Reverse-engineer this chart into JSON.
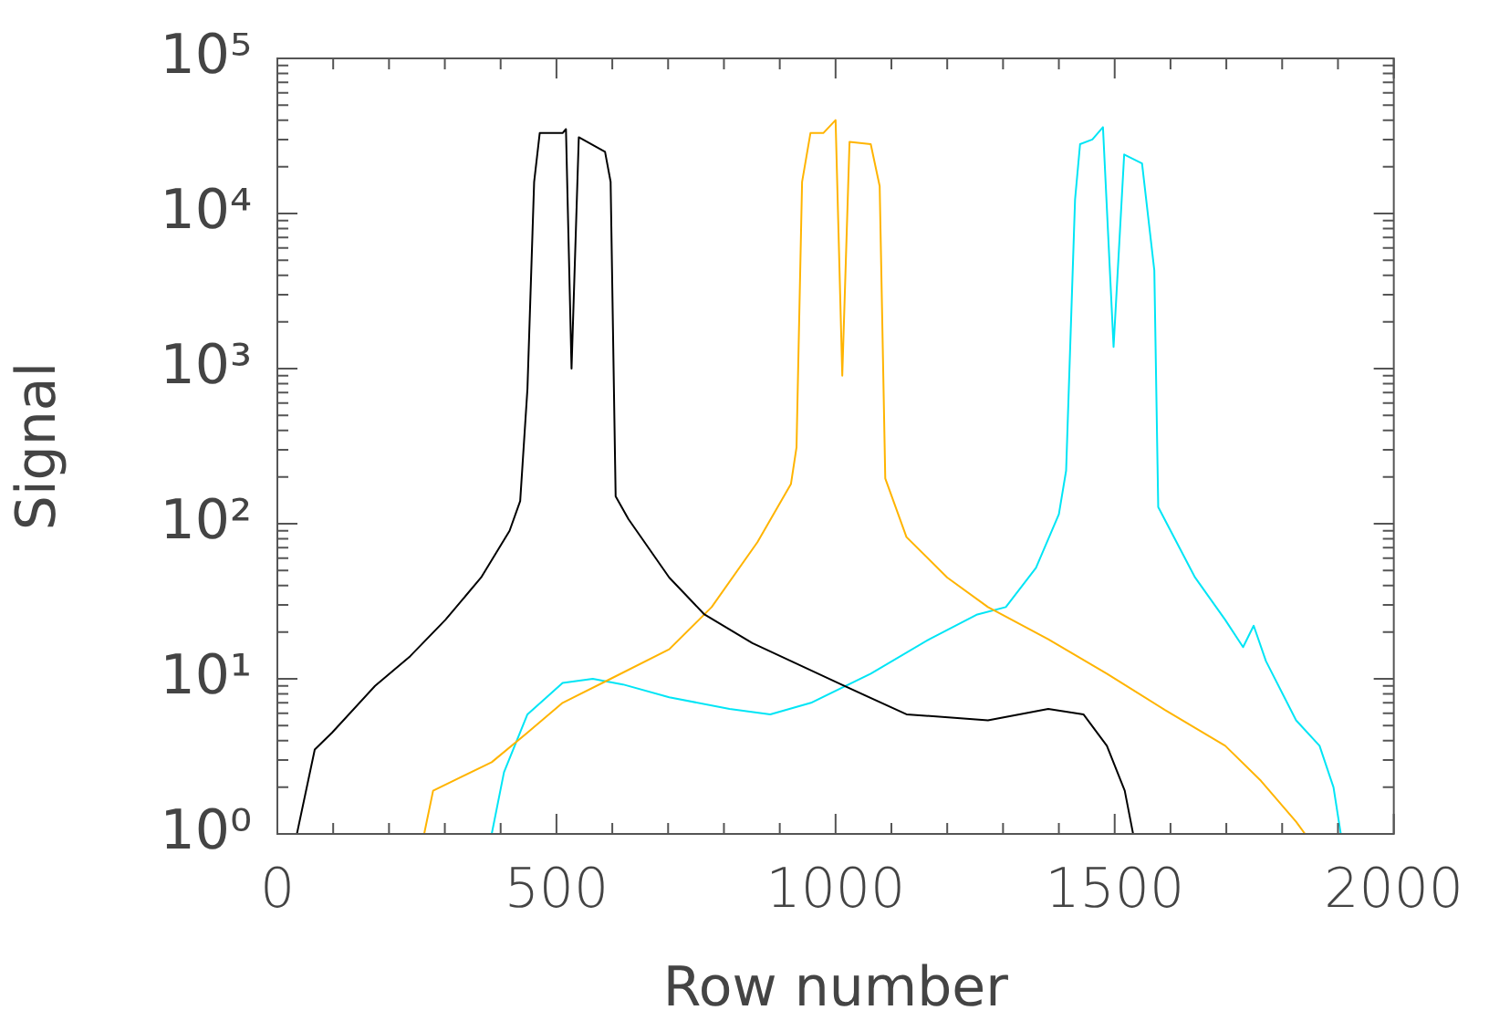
{
  "chart_data": {
    "type": "line",
    "xlabel": "Row number",
    "ylabel": "Signal",
    "log": "y",
    "grid": false,
    "legend": false,
    "marker": "none",
    "line_style": "solid",
    "xlim": [
      0,
      2000
    ],
    "xticks": [
      0,
      {
        "value": 100,
        "label": null
      },
      {
        "value": 200,
        "label": null
      },
      {
        "value": 300,
        "label": null
      },
      {
        "value": 400,
        "label": null
      },
      500,
      {
        "value": 600,
        "label": null
      },
      {
        "value": 700,
        "label": null
      },
      {
        "value": 800,
        "label": null
      },
      {
        "value": 900,
        "label": null
      },
      1000,
      {
        "value": 1100,
        "label": null
      },
      {
        "value": 1200,
        "label": null
      },
      {
        "value": 1300,
        "label": null
      },
      {
        "value": 1400,
        "label": null
      },
      1500,
      {
        "value": 1600,
        "label": null
      },
      {
        "value": 1700,
        "label": null
      },
      {
        "value": 1800,
        "label": null
      },
      {
        "value": 1900,
        "label": null
      },
      2000
    ],
    "ylim": [
      1,
      100000
    ],
    "yticks": [
      {
        "value": 1,
        "label": "10⁰"
      },
      {
        "value": 2,
        "label": null
      },
      {
        "value": 3,
        "label": null
      },
      {
        "value": 4,
        "label": null
      },
      {
        "value": 5,
        "label": null
      },
      {
        "value": 6,
        "label": null
      },
      {
        "value": 7,
        "label": null
      },
      {
        "value": 8,
        "label": null
      },
      {
        "value": 9,
        "label": null
      },
      {
        "value": 10,
        "label": "10¹"
      },
      {
        "value": 20,
        "label": null
      },
      {
        "value": 30,
        "label": null
      },
      {
        "value": 40,
        "label": null
      },
      {
        "value": 50,
        "label": null
      },
      {
        "value": 60,
        "label": null
      },
      {
        "value": 70,
        "label": null
      },
      {
        "value": 80,
        "label": null
      },
      {
        "value": 90,
        "label": null
      },
      {
        "value": 100,
        "label": "10²"
      },
      {
        "value": 200,
        "label": null
      },
      {
        "value": 300,
        "label": null
      },
      {
        "value": 400,
        "label": null
      },
      {
        "value": 500,
        "label": null
      },
      {
        "value": 600,
        "label": null
      },
      {
        "value": 700,
        "label": null
      },
      {
        "value": 800,
        "label": null
      },
      {
        "value": 900,
        "label": null
      },
      {
        "value": 1000,
        "label": "10³"
      },
      {
        "value": 2000,
        "label": null
      },
      {
        "value": 3000,
        "label": null
      },
      {
        "value": 4000,
        "label": null
      },
      {
        "value": 5000,
        "label": null
      },
      {
        "value": 6000,
        "label": null
      },
      {
        "value": 7000,
        "label": null
      },
      {
        "value": 8000,
        "label": null
      },
      {
        "value": 9000,
        "label": null
      },
      {
        "value": 10000,
        "label": "10⁴"
      },
      {
        "value": 20000,
        "label": null
      },
      {
        "value": 30000,
        "label": null
      },
      {
        "value": 40000,
        "label": null
      },
      {
        "value": 50000,
        "label": null
      },
      {
        "value": 60000,
        "label": null
      },
      {
        "value": 70000,
        "label": null
      },
      {
        "value": 80000,
        "label": null
      },
      {
        "value": 90000,
        "label": null
      },
      {
        "value": 100000,
        "label": "10⁵"
      }
    ],
    "series": [
      {
        "color": "#000000",
        "x": [
          35,
          67,
          98,
          175,
          238,
          301,
          365,
          416,
          435,
          448,
          460,
          470,
          511,
          517,
          527,
          540,
          587,
          597,
          606,
          629,
          702,
          765,
          851,
          1010,
          1127,
          1273,
          1381,
          1444,
          1486,
          1518,
          1533
        ],
        "values": [
          1,
          3.5,
          4.5,
          9,
          14,
          24,
          45,
          90,
          140,
          740,
          16000,
          33000,
          33000,
          35000,
          1000,
          31000,
          25000,
          16000,
          150,
          107,
          45,
          26,
          17,
          9.2,
          5.9,
          5.4,
          6.4,
          5.9,
          3.7,
          1.9,
          1
        ]
      },
      {
        "color": "#ffb400",
        "x": [
          263,
          279,
          384,
          448,
          511,
          597,
          702,
          778,
          860,
          920,
          930,
          940,
          955,
          978,
          1000,
          1012,
          1025,
          1063,
          1079,
          1089,
          1127,
          1200,
          1273,
          1381,
          1486,
          1590,
          1698,
          1762,
          1825,
          1841
        ],
        "values": [
          1,
          1.9,
          2.9,
          4.5,
          7,
          10,
          15.5,
          29,
          76,
          180,
          310,
          16000,
          33000,
          33000,
          40000,
          900,
          29000,
          28000,
          15000,
          196,
          82,
          45,
          29,
          18,
          10.8,
          6.3,
          3.7,
          2.2,
          1.2,
          1
        ]
      },
      {
        "color": "#00e5f5",
        "x": [
          384,
          406,
          448,
          511,
          565,
          619,
          702,
          810,
          883,
          956,
          1063,
          1168,
          1254,
          1305,
          1359,
          1400,
          1413,
          1429,
          1438,
          1460,
          1479,
          1498,
          1517,
          1549,
          1571,
          1578,
          1644,
          1698,
          1730,
          1749,
          1771,
          1825,
          1867,
          1892,
          1905
        ],
        "values": [
          1,
          2.5,
          5.9,
          9.4,
          10,
          9.2,
          7.6,
          6.4,
          5.9,
          7,
          10.8,
          18,
          26,
          29,
          52,
          115,
          220,
          12300,
          28000,
          30000,
          36000,
          1380,
          24000,
          21000,
          4300,
          128,
          45,
          24,
          16,
          22,
          13,
          5.4,
          3.7,
          2,
          1
        ]
      }
    ]
  }
}
